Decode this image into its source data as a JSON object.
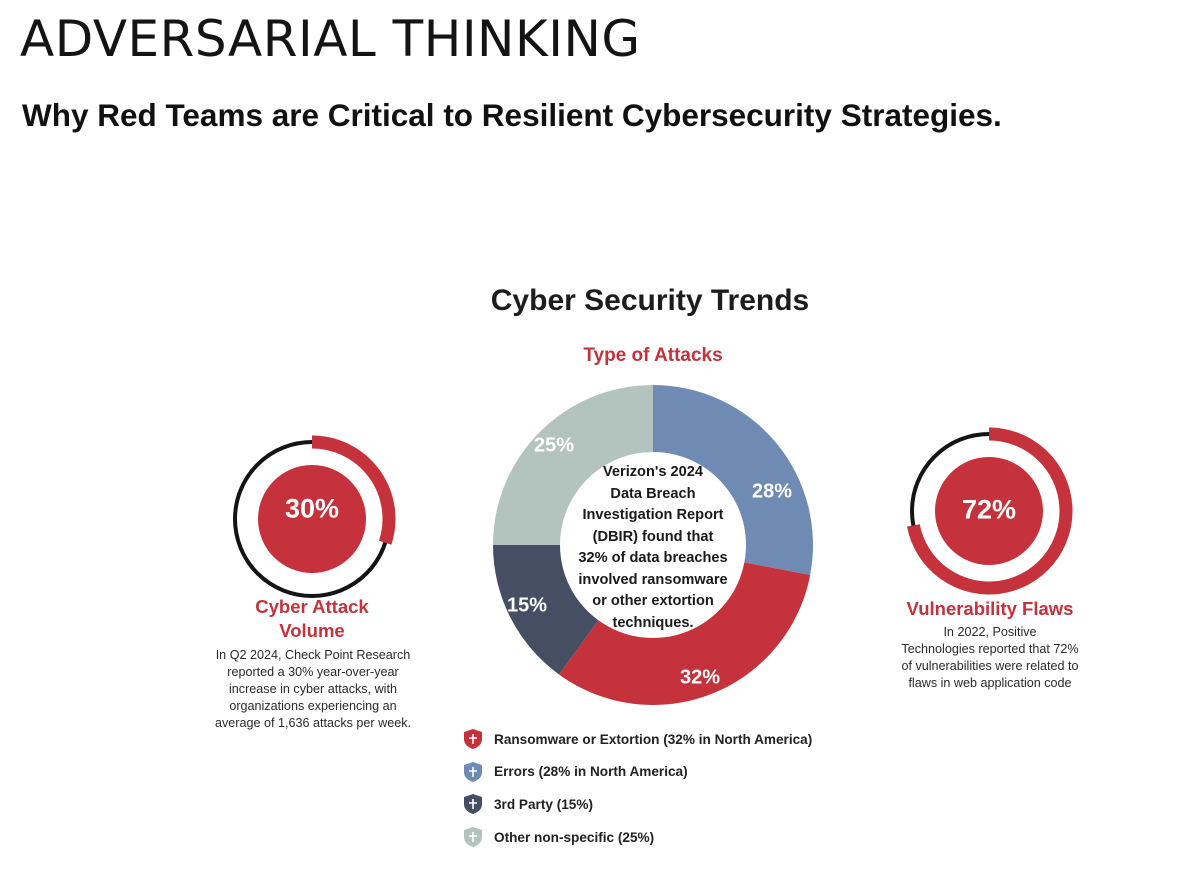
{
  "page": {
    "heading": "ADVERSARIAL THINKING",
    "subheading": "Why Red Teams are Critical to Resilient Cybersecurity Strategies."
  },
  "infographic": {
    "title": "Cyber Security Trends"
  },
  "chart_data": {
    "type": "pie",
    "variant": "donut",
    "title": "Type of Attacks",
    "start_angle_deg": 0,
    "direction": "clockwise",
    "slices": [
      {
        "label": "Errors",
        "value": 28,
        "display": "28%",
        "color": "#6f8bb3"
      },
      {
        "label": "Ransomware or Extortion",
        "value": 32,
        "display": "32%",
        "color": "#c5323c"
      },
      {
        "label": "3rd Party",
        "value": 15,
        "display": "15%",
        "color": "#454e63"
      },
      {
        "label": "Other non-specific",
        "value": 25,
        "display": "25%",
        "color": "#b3c4bf"
      }
    ],
    "center_text_lines": [
      "Verizon's 2024",
      "Data Breach",
      "Investigation Report",
      "(DBIR) found that",
      "32% of data breaches",
      "involved ransomware",
      "or other extortion",
      "techniques."
    ],
    "legend": [
      {
        "label": "Ransomware or Extortion (32% in North America)",
        "color": "#c5323c"
      },
      {
        "label": "Errors (28% in North America)",
        "color": "#6f8bb3"
      },
      {
        "label": "3rd Party (15%)",
        "color": "#454e63"
      },
      {
        "label": "Other non-specific (25%)",
        "color": "#b3c4bf"
      }
    ],
    "legend_position": "bottom"
  },
  "stats": {
    "left": {
      "value": "30%",
      "fraction": 0.3,
      "title_lines": [
        "Cyber Attack",
        "Volume"
      ],
      "text_lines": [
        "In Q2 2024, Check Point Research",
        "reported a 30% year-over-year",
        "increase in cyber attacks, with",
        "organizations experiencing an",
        "average of 1,636 attacks per week."
      ]
    },
    "right": {
      "value": "72%",
      "fraction": 0.72,
      "title_lines": [
        "Vulnerability Flaws"
      ],
      "text_lines": [
        "In 2022, Positive",
        "Technologies reported that 72%",
        "of vulnerabilities were related to",
        "flaws in web application code"
      ]
    }
  },
  "colors": {
    "accent_red": "#c5323c",
    "ring_track": "#141414",
    "text_dark": "#111111"
  }
}
